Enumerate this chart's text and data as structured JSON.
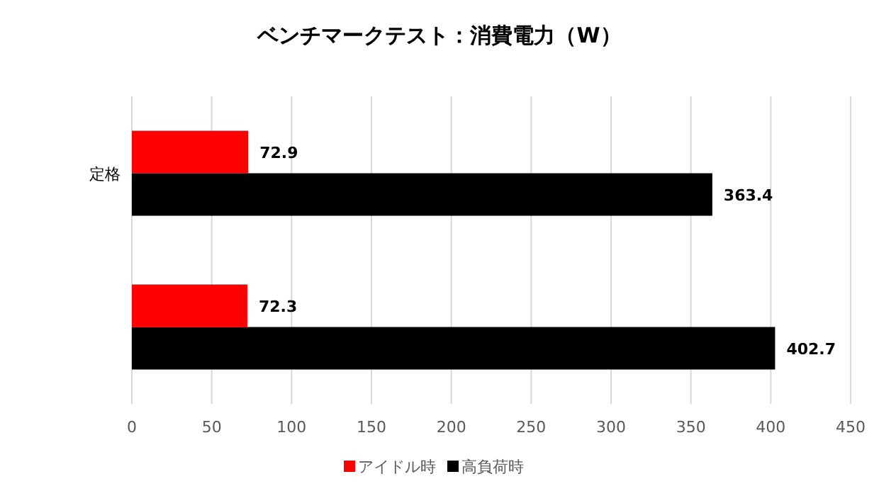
{
  "chart_data": {
    "type": "bar",
    "orientation": "horizontal",
    "title": "ベンチマークテスト：消費電力（W）",
    "categories": [
      "定格",
      null
    ],
    "series": [
      {
        "name": "アイドル時",
        "color": "#ff0000",
        "values": [
          72.9,
          72.3
        ]
      },
      {
        "name": "高負荷時",
        "color": "#000000",
        "values": [
          363.4,
          402.7
        ]
      }
    ],
    "xlim": [
      0,
      450
    ],
    "xticks": [
      0,
      50,
      100,
      150,
      200,
      250,
      300,
      350,
      400,
      450
    ],
    "grid": "x",
    "legend": "bottom",
    "data_labels": true
  }
}
